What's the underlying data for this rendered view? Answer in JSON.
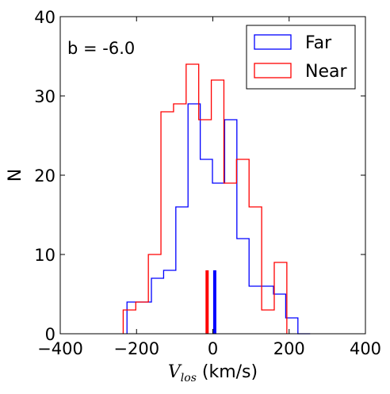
{
  "chart_data": {
    "type": "histogram",
    "annotation": "b = -6.0",
    "xlabel_symbol": "V",
    "xlabel_subscript": "los",
    "xlabel_unit": " (km/s)",
    "ylabel": "N",
    "xlim": [
      -400,
      400
    ],
    "ylim": [
      0,
      40
    ],
    "xticks": [
      -400,
      -200,
      0,
      200,
      400
    ],
    "yticks": [
      0,
      10,
      20,
      30,
      40
    ],
    "xtick_labels": [
      "−400",
      "−200",
      "0",
      "200",
      "400"
    ],
    "ytick_labels": [
      "0",
      "10",
      "20",
      "30",
      "40"
    ],
    "legend_position": "top-right",
    "series": [
      {
        "name": "Far",
        "color": "#0000ff",
        "bin_edges": [
          -225,
          -193,
          -161,
          -129,
          -97,
          -65,
          -33,
          -1,
          31,
          63,
          95,
          127,
          159,
          191,
          223,
          255
        ],
        "counts": [
          4,
          4,
          7,
          8,
          16,
          29,
          22,
          19,
          27,
          12,
          6,
          6,
          5,
          2,
          0
        ],
        "mean_marker": 5
      },
      {
        "name": "Near",
        "color": "#ff0000",
        "bin_edges": [
          -235,
          -202,
          -169,
          -136,
          -103,
          -70,
          -37,
          -4,
          29,
          62,
          95,
          128,
          161,
          194
        ],
        "counts": [
          3,
          4,
          10,
          28,
          29,
          34,
          27,
          32,
          19,
          22,
          16,
          3,
          9
        ],
        "mean_marker": -15
      }
    ]
  }
}
